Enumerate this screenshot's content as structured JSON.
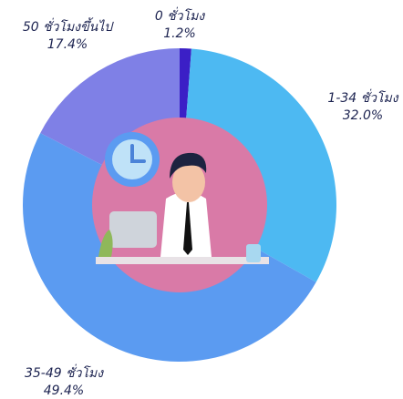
{
  "chart_data": {
    "type": "donut",
    "categories": [
      "0 ชั่วโมง",
      "1-34 ชั่วโมง",
      "35-49 ชั่วโมง",
      "50 ชั่วโมงขึ้นไป"
    ],
    "values": [
      1.2,
      32.0,
      49.4,
      17.4
    ],
    "value_labels": [
      "1.2%",
      "32.0%",
      "49.4%",
      "17.4%"
    ],
    "colors": [
      "#3b1fc6",
      "#4db9f2",
      "#5b9bf1",
      "#7f80e6"
    ]
  }
}
